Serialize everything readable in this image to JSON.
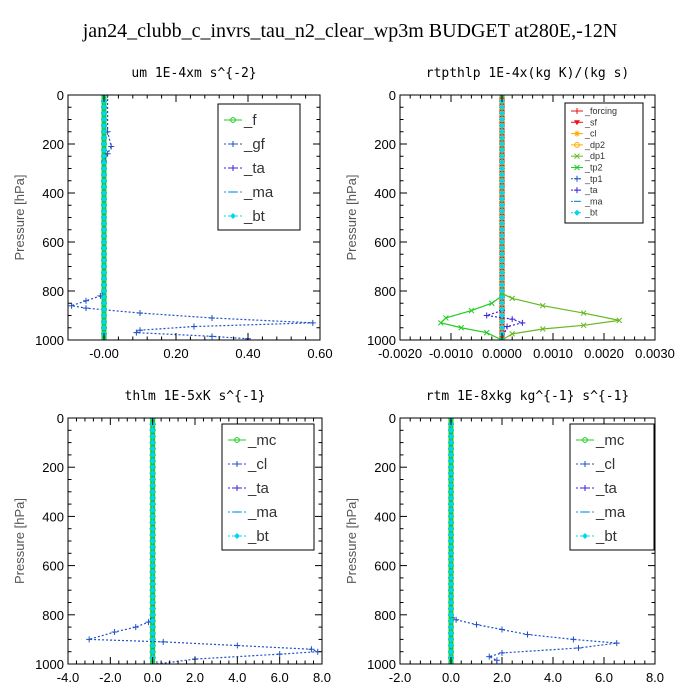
{
  "title": "jan24_clubb_c_invrs_tau_n2_clear_wp3m  BUDGET at280E,-12N",
  "colors": {
    "green": "#22cc22",
    "blue": "#1e50c8",
    "purple": "#3a22dd",
    "cyan": "#00d8ee",
    "lightblue": "#1496e6",
    "red": "#ee1111",
    "orange": "#ffaa00",
    "olive": "#66b822",
    "axis": "#000000"
  },
  "chart_data": [
    {
      "type": "line",
      "title": "um  1E-4xm s^{-2}",
      "ylabel": "Pressure [hPa]",
      "xlabel": "",
      "xlim": [
        -0.1,
        0.6
      ],
      "ylim": [
        1000,
        0
      ],
      "xticks": [
        -0.0,
        0.2,
        0.4,
        0.6
      ],
      "xtick_labels": [
        "-0.00",
        "0.20",
        "0.40",
        "0.60"
      ],
      "yticks": [
        0,
        200,
        400,
        600,
        800,
        1000
      ],
      "ytick_labels": [
        "0",
        "200",
        "400",
        "600",
        "800",
        "1000"
      ],
      "legend_position": "top-right",
      "series": [
        {
          "name": "_f",
          "color": "green",
          "marker": "o",
          "dash": "solid",
          "x": [
            0,
            0
          ],
          "y": [
            0,
            1000
          ]
        },
        {
          "name": "_gf",
          "color": "blue",
          "marker": "+",
          "dash": "dot",
          "x": [
            0.01,
            0.01,
            0.02,
            0.01,
            0.0,
            0.0,
            0.0,
            -0.01,
            -0.05,
            -0.09,
            -0.05,
            0.1,
            0.3,
            0.58,
            0.25,
            0.1,
            0.09,
            0.3,
            0.4
          ],
          "y": [
            0,
            150,
            210,
            240,
            270,
            500,
            800,
            820,
            840,
            860,
            870,
            890,
            910,
            930,
            945,
            960,
            970,
            985,
            995
          ]
        },
        {
          "name": "_ta",
          "color": "purple",
          "marker": "+",
          "dash": "dot",
          "x": [
            0.0,
            0.0,
            0.0
          ],
          "y": [
            0,
            500,
            1000
          ]
        },
        {
          "name": "_ma",
          "color": "lightblue",
          "marker": "-",
          "dash": "dot",
          "x": [
            0.0,
            0.0,
            0.0
          ],
          "y": [
            0,
            500,
            1000
          ]
        },
        {
          "name": "_bt",
          "color": "cyan",
          "marker": "d",
          "dash": "dot",
          "x": [
            0.0,
            0.0,
            0.0
          ],
          "y": [
            0,
            500,
            1000
          ]
        }
      ]
    },
    {
      "type": "line",
      "title": "rtpthlp  1E-4x(kg K)/(kg s)",
      "ylabel": "Pressure [hPa]",
      "xlabel": "",
      "xlim": [
        -0.002,
        0.003
      ],
      "ylim": [
        1000,
        0
      ],
      "xticks": [
        -0.002,
        -0.001,
        0.0,
        0.001,
        0.002,
        0.003
      ],
      "xtick_labels": [
        "-0.0020",
        "-0.0010",
        "0.0000",
        "0.0010",
        "0.0020",
        "0.0030"
      ],
      "yticks": [
        0,
        200,
        400,
        600,
        800,
        1000
      ],
      "ytick_labels": [
        "0",
        "200",
        "400",
        "600",
        "800",
        "1000"
      ],
      "legend_position": "top-right",
      "series": [
        {
          "name": "_forcing",
          "color": "red",
          "marker": "+",
          "dash": "solid",
          "x": [
            0,
            0
          ],
          "y": [
            0,
            1000
          ]
        },
        {
          "name": "_sf",
          "color": "red",
          "marker": "v",
          "dash": "solid",
          "x": [
            0,
            0
          ],
          "y": [
            0,
            1000
          ]
        },
        {
          "name": "_cl",
          "color": "orange",
          "marker": "*",
          "dash": "solid",
          "x": [
            0,
            0
          ],
          "y": [
            0,
            1000
          ]
        },
        {
          "name": "_dp2",
          "color": "orange",
          "marker": "o",
          "dash": "solid",
          "x": [
            0,
            0
          ],
          "y": [
            0,
            1000
          ]
        },
        {
          "name": "_dp1",
          "color": "olive",
          "marker": "x",
          "dash": "solid",
          "x": [
            0,
            0,
            0.0002,
            0.0008,
            0.0016,
            0.0023,
            0.0016,
            0.0008,
            0.0002,
            0
          ],
          "y": [
            0,
            810,
            830,
            860,
            890,
            920,
            940,
            955,
            975,
            1000
          ]
        },
        {
          "name": "_tp2",
          "color": "green",
          "marker": "x",
          "dash": "solid",
          "x": [
            0,
            0,
            -0.0002,
            -0.0006,
            -0.0011,
            -0.0012,
            -0.0008,
            -0.0003,
            0
          ],
          "y": [
            0,
            820,
            850,
            880,
            910,
            930,
            950,
            970,
            1000
          ]
        },
        {
          "name": "_tp1",
          "color": "blue",
          "marker": "+",
          "dash": "dot",
          "x": [
            0,
            0
          ],
          "y": [
            0,
            1000
          ]
        },
        {
          "name": "_ta",
          "color": "purple",
          "marker": "+",
          "dash": "dot",
          "x": [
            0,
            0,
            -0.0003,
            0.0002,
            0.0004,
            0.0001,
            0
          ],
          "y": [
            0,
            880,
            900,
            915,
            930,
            945,
            1000
          ]
        },
        {
          "name": "_ma",
          "color": "lightblue",
          "marker": "-",
          "dash": "dot",
          "x": [
            0,
            0
          ],
          "y": [
            0,
            1000
          ]
        },
        {
          "name": "_bt",
          "color": "cyan",
          "marker": "d",
          "dash": "dot",
          "x": [
            0,
            0
          ],
          "y": [
            0,
            1000
          ]
        }
      ]
    },
    {
      "type": "line",
      "title": "thlm  1E-5xK s^{-1}",
      "ylabel": "Pressure [hPa]",
      "xlabel": "",
      "xlim": [
        -4.0,
        8.0
      ],
      "ylim": [
        1000,
        0
      ],
      "xticks": [
        -4,
        -2,
        0,
        2,
        4,
        6,
        8
      ],
      "xtick_labels": [
        "-4.0",
        "-2.0",
        "0.0",
        "2.0",
        "4.0",
        "6.0",
        "8.0"
      ],
      "yticks": [
        0,
        200,
        400,
        600,
        800,
        1000
      ],
      "ytick_labels": [
        "0",
        "200",
        "400",
        "600",
        "800",
        "1000"
      ],
      "legend_position": "top-right",
      "series": [
        {
          "name": "_mc",
          "color": "green",
          "marker": "o",
          "dash": "solid",
          "x": [
            0,
            0
          ],
          "y": [
            0,
            1000
          ]
        },
        {
          "name": "_cl",
          "color": "blue",
          "marker": "+",
          "dash": "dot",
          "x": [
            0,
            0,
            -0.2,
            -0.8,
            -1.8,
            -3.0,
            0.5,
            4.0,
            7.5,
            7.8,
            6.0,
            2.0,
            0.2
          ],
          "y": [
            0,
            800,
            830,
            850,
            870,
            900,
            910,
            925,
            940,
            950,
            960,
            980,
            1000
          ]
        },
        {
          "name": "_ta",
          "color": "purple",
          "marker": "+",
          "dash": "dot",
          "x": [
            0,
            0
          ],
          "y": [
            0,
            1000
          ]
        },
        {
          "name": "_ma",
          "color": "lightblue",
          "marker": "-",
          "dash": "dot",
          "x": [
            0,
            0
          ],
          "y": [
            0,
            1000
          ]
        },
        {
          "name": "_bt",
          "color": "cyan",
          "marker": "d",
          "dash": "dot",
          "x": [
            0,
            0
          ],
          "y": [
            0,
            1000
          ]
        }
      ]
    },
    {
      "type": "line",
      "title": "rtm  1E-8xkg kg^{-1} s^{-1}",
      "ylabel": "Pressure [hPa]",
      "xlabel": "",
      "xlim": [
        -2.0,
        8.0
      ],
      "ylim": [
        1000,
        0
      ],
      "xticks": [
        -2,
        0,
        2,
        4,
        6,
        8
      ],
      "xtick_labels": [
        "-2.0",
        "0.0",
        "2.0",
        "4.0",
        "6.0",
        "8.0"
      ],
      "yticks": [
        0,
        200,
        400,
        600,
        800,
        1000
      ],
      "ytick_labels": [
        "0",
        "200",
        "400",
        "600",
        "800",
        "1000"
      ],
      "legend_position": "top-right",
      "series": [
        {
          "name": "_mc",
          "color": "green",
          "marker": "o",
          "dash": "solid",
          "x": [
            0,
            0
          ],
          "y": [
            0,
            1000
          ]
        },
        {
          "name": "_cl",
          "color": "blue",
          "marker": "+",
          "dash": "dot",
          "x": [
            0,
            0,
            0.2,
            1.0,
            2.0,
            3.0,
            4.8,
            6.5,
            5.0,
            2.0,
            1.5,
            1.8,
            1.8
          ],
          "y": [
            0,
            800,
            820,
            840,
            860,
            880,
            900,
            915,
            935,
            955,
            970,
            985,
            1000
          ]
        },
        {
          "name": "_ta",
          "color": "purple",
          "marker": "+",
          "dash": "dot",
          "x": [
            0,
            0
          ],
          "y": [
            0,
            1000
          ]
        },
        {
          "name": "_ma",
          "color": "lightblue",
          "marker": "-",
          "dash": "dot",
          "x": [
            0,
            0
          ],
          "y": [
            0,
            1000
          ]
        },
        {
          "name": "_bt",
          "color": "cyan",
          "marker": "d",
          "dash": "dot",
          "x": [
            0,
            0
          ],
          "y": [
            0,
            1000
          ]
        }
      ]
    }
  ]
}
